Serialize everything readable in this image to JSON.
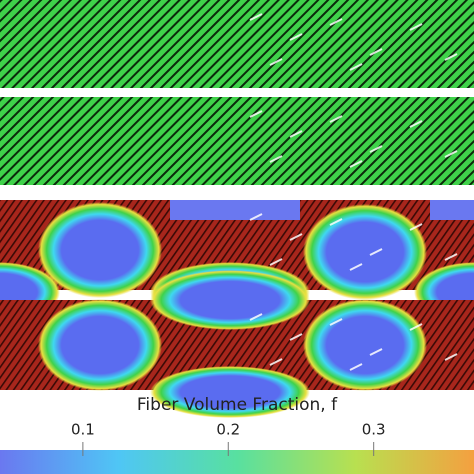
{
  "colorbar": {
    "title": "Fiber Volume Fraction, f",
    "clim": [
      0.043,
      0.369
    ],
    "ticks": [
      0.1,
      0.2,
      0.3
    ]
  }
}
